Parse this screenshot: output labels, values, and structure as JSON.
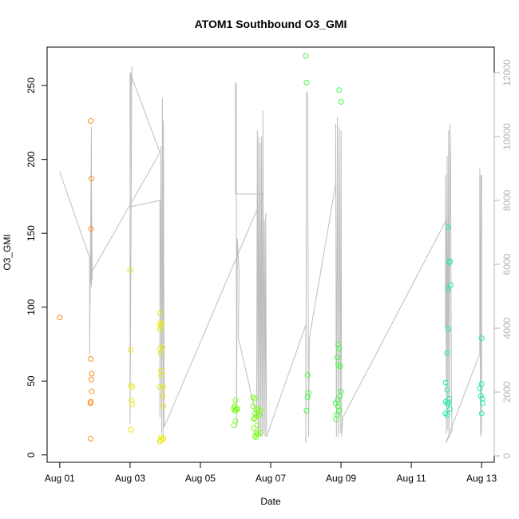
{
  "chart_data": {
    "type": "scatter",
    "title": "ATOM1 Southbound O3_GMI",
    "xlabel": "Date",
    "ylabel": "O3_GMI",
    "y2label": "",
    "x_range_days": [
      0,
      13
    ],
    "xlim": [
      "Aug 01",
      "Aug 13"
    ],
    "x_ticks": [
      {
        "day": 0,
        "label": "Aug 01"
      },
      {
        "day": 2,
        "label": "Aug 03"
      },
      {
        "day": 4,
        "label": "Aug 05"
      },
      {
        "day": 6,
        "label": "Aug 07"
      },
      {
        "day": 8,
        "label": "Aug 09"
      },
      {
        "day": 10,
        "label": "Aug 11"
      },
      {
        "day": 12,
        "label": "Aug 13"
      }
    ],
    "ylim": [
      0,
      275
    ],
    "y_ticks": [
      0,
      50,
      100,
      150,
      200,
      250
    ],
    "y2lim": [
      0,
      12500
    ],
    "y2_ticks": [
      0,
      2000,
      4000,
      6000,
      8000,
      10000,
      12000
    ],
    "grid": false,
    "colors": {
      "line": "#bebebe",
      "axis": "#000000",
      "right_axis": "#b3b3b3"
    },
    "series": [
      {
        "kind": "points",
        "color": "#FF8C1A",
        "points": [
          [
            0.0,
            93
          ],
          [
            0.88,
            226
          ],
          [
            0.88,
            65
          ],
          [
            0.88,
            36
          ],
          [
            0.87,
            35
          ],
          [
            0.88,
            11
          ],
          [
            0.9,
            187
          ],
          [
            0.89,
            153
          ],
          [
            0.91,
            55
          ],
          [
            0.9,
            51
          ],
          [
            0.91,
            43
          ]
        ]
      },
      {
        "kind": "points",
        "color": "#E8E81A",
        "points": [
          [
            2.0,
            125
          ],
          [
            2.02,
            71
          ],
          [
            2.02,
            47
          ],
          [
            2.06,
            46
          ],
          [
            2.04,
            37
          ],
          [
            2.06,
            34
          ],
          [
            2.02,
            17
          ],
          [
            2.85,
            96
          ],
          [
            2.85,
            89
          ],
          [
            2.87,
            87
          ],
          [
            2.9,
            89
          ],
          [
            2.85,
            85
          ],
          [
            2.85,
            72
          ],
          [
            2.87,
            69
          ],
          [
            2.92,
            73
          ],
          [
            2.88,
            57
          ],
          [
            2.88,
            54
          ],
          [
            2.85,
            46
          ],
          [
            2.95,
            46
          ],
          [
            2.93,
            40
          ],
          [
            2.95,
            33
          ],
          [
            2.87,
            12
          ],
          [
            2.88,
            10
          ],
          [
            2.92,
            11
          ],
          [
            2.95,
            11
          ],
          [
            2.85,
            9
          ]
        ]
      },
      {
        "kind": "points",
        "color": "#7CFC1A",
        "points": [
          [
            5.0,
            37
          ],
          [
            4.98,
            33
          ],
          [
            5.02,
            31
          ],
          [
            4.95,
            32
          ],
          [
            5.0,
            30
          ],
          [
            5.05,
            31
          ],
          [
            4.98,
            30
          ],
          [
            5.0,
            23
          ],
          [
            4.95,
            20
          ],
          [
            5.5,
            39
          ],
          [
            5.55,
            38
          ],
          [
            5.5,
            33
          ],
          [
            5.55,
            28
          ],
          [
            5.6,
            27
          ],
          [
            5.55,
            25
          ],
          [
            5.52,
            24
          ],
          [
            5.6,
            31
          ],
          [
            5.65,
            31
          ],
          [
            5.7,
            30
          ],
          [
            5.68,
            27
          ],
          [
            5.62,
            20
          ],
          [
            5.52,
            18
          ],
          [
            5.6,
            15
          ],
          [
            5.55,
            13
          ],
          [
            5.62,
            14
          ],
          [
            5.7,
            15
          ],
          [
            5.58,
            12
          ]
        ]
      },
      {
        "kind": "points",
        "color": "#3CFC3C",
        "points": [
          [
            7.0,
            270
          ],
          [
            7.02,
            252
          ],
          [
            7.05,
            54
          ],
          [
            7.08,
            42
          ],
          [
            7.05,
            39
          ],
          [
            7.02,
            30
          ],
          [
            7.95,
            247
          ],
          [
            8.0,
            239
          ],
          [
            7.92,
            75
          ],
          [
            7.95,
            72
          ],
          [
            7.9,
            66
          ],
          [
            7.92,
            61
          ],
          [
            7.98,
            60
          ],
          [
            8.0,
            43
          ],
          [
            7.97,
            40
          ],
          [
            7.9,
            37
          ],
          [
            7.85,
            35
          ],
          [
            7.92,
            33
          ],
          [
            7.95,
            30
          ],
          [
            7.88,
            27
          ],
          [
            7.86,
            24
          ]
        ]
      },
      {
        "kind": "points",
        "color": "#1AF0A0",
        "points": [
          [
            11.05,
            154
          ],
          [
            11.1,
            131
          ],
          [
            11.08,
            130
          ],
          [
            11.12,
            115
          ],
          [
            11.05,
            112
          ],
          [
            11.05,
            85
          ],
          [
            11.02,
            69
          ],
          [
            10.98,
            49
          ],
          [
            11.02,
            44
          ],
          [
            11.08,
            38
          ],
          [
            10.98,
            36
          ],
          [
            11.02,
            35
          ],
          [
            11.05,
            35
          ],
          [
            11.1,
            31
          ],
          [
            10.97,
            28
          ],
          [
            11.02,
            27
          ],
          [
            12.0,
            79
          ],
          [
            11.95,
            45
          ],
          [
            12.0,
            48
          ],
          [
            11.98,
            40
          ],
          [
            12.02,
            38
          ],
          [
            12.03,
            35
          ],
          [
            12.0,
            28
          ]
        ]
      },
      {
        "kind": "line",
        "axis": "right",
        "color": "#bebebe",
        "points": [
          [
            0.0,
            8900
          ],
          [
            0.85,
            6200
          ],
          [
            0.85,
            3200
          ],
          [
            0.9,
            10300
          ],
          [
            0.9,
            5300
          ],
          [
            0.92,
            6300
          ],
          [
            0.92,
            5500
          ],
          [
            0.9,
            8900
          ],
          [
            0.88,
            5400
          ],
          [
            0.93,
            5800
          ],
          [
            2.85,
            9500
          ],
          [
            2.0,
            12000
          ],
          [
            2.0,
            1000
          ],
          [
            2.05,
            12200
          ],
          [
            2.04,
            11600
          ],
          [
            2.02,
            12000
          ],
          [
            2.0,
            7800
          ],
          [
            2.85,
            8000
          ],
          [
            2.85,
            1200
          ],
          [
            2.88,
            9700
          ],
          [
            2.9,
            700
          ],
          [
            2.92,
            11200
          ],
          [
            2.94,
            600
          ],
          [
            2.95,
            10500
          ],
          [
            2.97,
            900
          ],
          [
            5.8,
            8200
          ],
          [
            5.0,
            8200
          ],
          [
            5.0,
            11700
          ],
          [
            5.02,
            11600
          ],
          [
            5.03,
            900
          ],
          [
            5.05,
            6800
          ],
          [
            5.07,
            6400
          ],
          [
            5.1,
            5700
          ],
          [
            5.08,
            3700
          ],
          [
            5.6,
            1200
          ],
          [
            5.62,
            10200
          ],
          [
            5.64,
            600
          ],
          [
            5.66,
            10000
          ],
          [
            5.68,
            700
          ],
          [
            5.7,
            9800
          ],
          [
            5.72,
            600
          ],
          [
            5.74,
            10000
          ],
          [
            5.76,
            600
          ],
          [
            5.78,
            10800
          ],
          [
            5.8,
            700
          ],
          [
            5.82,
            7400
          ],
          [
            5.84,
            600
          ],
          [
            5.86,
            7600
          ],
          [
            5.88,
            600
          ],
          [
            7.0,
            4100
          ],
          [
            7.0,
            400
          ],
          [
            7.02,
            11400
          ],
          [
            7.05,
            11300
          ],
          [
            7.08,
            600
          ],
          [
            7.1,
            3700
          ],
          [
            7.85,
            8500
          ],
          [
            7.85,
            10400
          ],
          [
            7.87,
            600
          ],
          [
            7.9,
            10600
          ],
          [
            7.92,
            600
          ],
          [
            7.95,
            10300
          ],
          [
            7.98,
            700
          ],
          [
            8.0,
            10200
          ],
          [
            8.02,
            600
          ],
          [
            8.05,
            1200
          ],
          [
            11.0,
            7400
          ],
          [
            10.97,
            4000
          ],
          [
            10.98,
            8800
          ],
          [
            11.0,
            700
          ],
          [
            11.02,
            9400
          ],
          [
            11.04,
            800
          ],
          [
            11.06,
            10200
          ],
          [
            11.08,
            700
          ],
          [
            11.1,
            10400
          ],
          [
            11.12,
            9000
          ],
          [
            11.14,
            1900
          ],
          [
            11.16,
            800
          ],
          [
            10.98,
            400
          ],
          [
            11.95,
            3200
          ],
          [
            11.95,
            9000
          ],
          [
            11.97,
            600
          ],
          [
            11.98,
            8800
          ],
          [
            12.0,
            700
          ],
          [
            12.0,
            8800
          ]
        ]
      }
    ]
  }
}
